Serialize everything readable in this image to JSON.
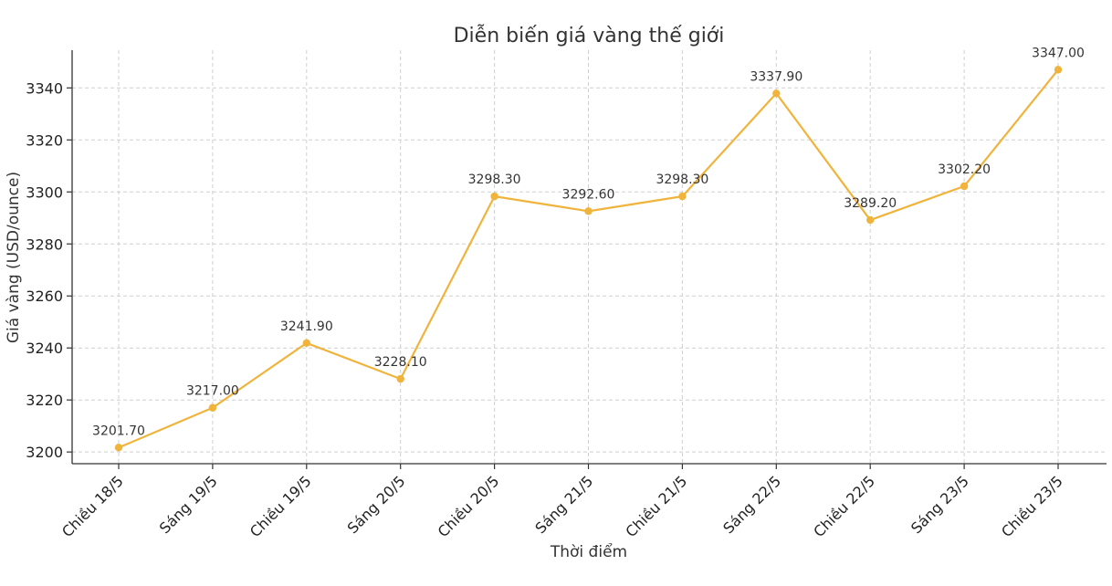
{
  "chart_data": {
    "type": "line",
    "title": "Diễn biến giá vàng thế giới",
    "xlabel": "Thời điểm",
    "ylabel": "Giá vàng (USD/ounce)",
    "categories": [
      "Chiều 18/5",
      "Sáng 19/5",
      "Chiều 19/5",
      "Sáng 20/5",
      "Chiều 20/5",
      "Sáng 21/5",
      "Chiều 21/5",
      "Sáng 22/5",
      "Chiều 22/5",
      "Sáng 23/5",
      "Chiều 23/5"
    ],
    "series": [
      {
        "values": [
          3201.7,
          3217.0,
          3241.9,
          3228.1,
          3298.3,
          3292.6,
          3298.3,
          3337.9,
          3289.2,
          3302.2,
          3347.0
        ],
        "data_labels": [
          "3201.70",
          "3217.00",
          "3241.90",
          "3228.10",
          "3298.30",
          "3292.60",
          "3298.30",
          "3337.90",
          "3289.20",
          "3302.20",
          "3347.00"
        ],
        "color": "#f0b43c"
      }
    ],
    "yticks": [
      3200,
      3220,
      3240,
      3260,
      3280,
      3300,
      3320,
      3340
    ],
    "ylim": [
      3195.5,
      3354.5
    ],
    "grid": true,
    "legend": "none"
  }
}
